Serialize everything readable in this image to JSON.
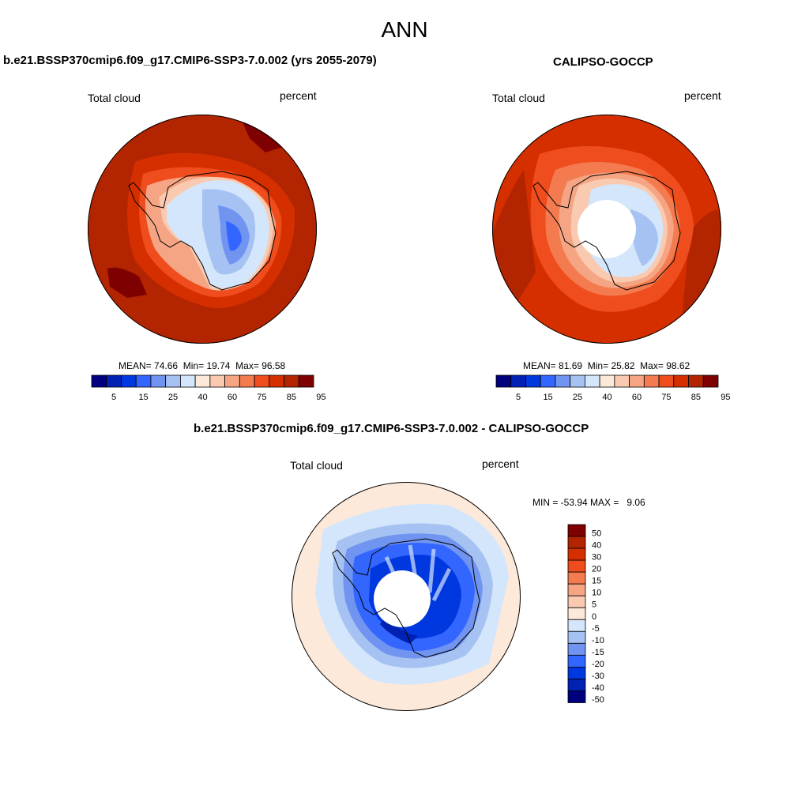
{
  "title": "ANN",
  "colors": [
    "#00007f",
    "#0021b2",
    "#0038e0",
    "#3366ff",
    "#7094f0",
    "#a6c2f2",
    "#d4e6fb",
    "#fde9d9",
    "#f9cab0",
    "#f5a583",
    "#f37b4f",
    "#ef4d1d",
    "#d52f00",
    "#b32400",
    "#7f0000"
  ],
  "panels": {
    "model": {
      "title": "b.e21.BSSP370cmip6.f09_g17.CMIP6-SSP3-7.0.002 (yrs 2055-2079)",
      "field": "Total cloud",
      "units": "percent",
      "stats": {
        "mean_label": "MEAN=",
        "mean": "74.66",
        "min_label": "Min=",
        "min": "19.74",
        "max_label": "Max=",
        "max": "96.58"
      },
      "colorbar_ticks": [
        "5",
        "15",
        "25",
        "40",
        "60",
        "75",
        "85",
        "95"
      ]
    },
    "obs": {
      "title": "CALIPSO-GOCCP",
      "field": "Total cloud",
      "units": "percent",
      "stats": {
        "mean_label": "MEAN=",
        "mean": "81.69",
        "min_label": "Min=",
        "min": "25.82",
        "max_label": "Max=",
        "max": "98.62"
      },
      "colorbar_ticks": [
        "5",
        "15",
        "25",
        "40",
        "60",
        "75",
        "85",
        "95"
      ]
    },
    "diff": {
      "title": "b.e21.BSSP370cmip6.f09_g17.CMIP6-SSP3-7.0.002 - CALIPSO-GOCCP",
      "field": "Total cloud",
      "units": "percent",
      "minmax": "MIN = -53.94 MAX =   9.06",
      "colorbar_ticks": [
        "50",
        "40",
        "30",
        "20",
        "15",
        "10",
        "5",
        "0",
        "-5",
        "-10",
        "-15",
        "-20",
        "-30",
        "-40",
        "-50"
      ]
    }
  }
}
